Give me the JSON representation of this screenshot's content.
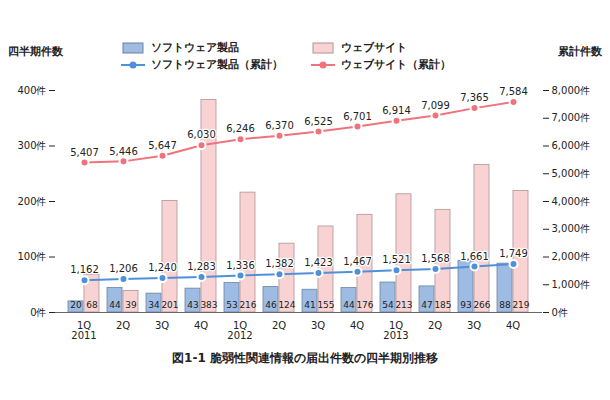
{
  "chart_data": {
    "type": "bar",
    "title": "図1-1 脆弱性関連情報の届出件数の四半期別推移",
    "y_label": "四半期件数",
    "y2_label": "累計件数",
    "categories": [
      "1Q\n2011",
      "2Q",
      "3Q",
      "4Q",
      "1Q\n2012",
      "2Q",
      "3Q",
      "4Q",
      "1Q\n2013",
      "2Q",
      "3Q",
      "4Q"
    ],
    "series": [
      {
        "name": "ソフトウェア製品",
        "type": "bar",
        "color": "#9dbbe3",
        "values": [
          20,
          44,
          34,
          43,
          53,
          46,
          41,
          44,
          54,
          47,
          93,
          88
        ]
      },
      {
        "name": "ウェブサイト",
        "type": "bar",
        "color": "#f9d3d3",
        "values": [
          68,
          39,
          201,
          383,
          216,
          124,
          155,
          176,
          213,
          185,
          266,
          219
        ]
      },
      {
        "name": "ソフトウェア製品（累計）",
        "type": "line",
        "axis": "y2",
        "color": "#4f91d9",
        "marker": "circle",
        "values": [
          1162,
          1206,
          1240,
          1283,
          1336,
          1382,
          1423,
          1467,
          1521,
          1568,
          1661,
          1749
        ],
        "value_labels": [
          "1,162",
          "1,206",
          "1,240",
          "1,283",
          "1,336",
          "1,382",
          "1,423",
          "1,467",
          "1,521",
          "1,568",
          "1,661",
          "1,749"
        ]
      },
      {
        "name": "ウェブサイト（累計）",
        "type": "line",
        "axis": "y2",
        "color": "#f0727c",
        "marker": "circle",
        "values": [
          5407,
          5446,
          5647,
          6030,
          6246,
          6370,
          6525,
          6701,
          6914,
          7099,
          7365,
          7584
        ],
        "value_labels": [
          "5,407",
          "5,446",
          "5,647",
          "6,030",
          "6,246",
          "6,370",
          "6,525",
          "6,701",
          "6,914",
          "7,099",
          "7,365",
          "7,584"
        ]
      }
    ],
    "ylim": [
      0,
      400
    ],
    "yticks": [
      {
        "value": 0,
        "label": "0件"
      },
      {
        "value": 100,
        "label": "100件"
      },
      {
        "value": 200,
        "label": "200件"
      },
      {
        "value": 300,
        "label": "300件"
      },
      {
        "value": 400,
        "label": "400件"
      }
    ],
    "y2lim": [
      0,
      8000
    ],
    "y2ticks": [
      {
        "value": 0,
        "label": "0件"
      },
      {
        "value": 1000,
        "label": "1,000件"
      },
      {
        "value": 2000,
        "label": "2,000件"
      },
      {
        "value": 3000,
        "label": "3,000件"
      },
      {
        "value": 4000,
        "label": "4,000件"
      },
      {
        "value": 5000,
        "label": "5,000件"
      },
      {
        "value": 6000,
        "label": "6,000件"
      },
      {
        "value": 7000,
        "label": "7,000件"
      },
      {
        "value": 8000,
        "label": "8,000件"
      }
    ],
    "legend": "top",
    "data_labels": true,
    "grid": false
  }
}
